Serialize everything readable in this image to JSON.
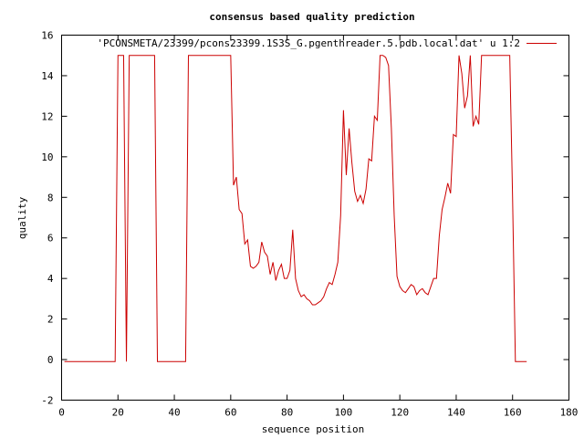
{
  "chart_data": {
    "type": "line",
    "title": "consensus based quality prediction",
    "xlabel": "sequence position",
    "ylabel": "quality",
    "xlim": [
      0,
      180
    ],
    "ylim": [
      -2,
      16
    ],
    "xticks": [
      0,
      20,
      40,
      60,
      80,
      100,
      120,
      140,
      160,
      180
    ],
    "yticks": [
      -2,
      0,
      2,
      4,
      6,
      8,
      10,
      12,
      14,
      16
    ],
    "grid": false,
    "legend_position": "top-right",
    "series": [
      {
        "name": "'PCONSMETA/23399/pcons23399.1S3S_G.pgenthreader.5.pdb.local.dat' u 1:2",
        "color": "#cc0000",
        "points": [
          [
            1,
            -0.1
          ],
          [
            19,
            -0.1
          ],
          [
            20,
            15
          ],
          [
            22,
            15
          ],
          [
            23,
            -0.1
          ],
          [
            24,
            15
          ],
          [
            33,
            15
          ],
          [
            34,
            -0.1
          ],
          [
            44,
            -0.1
          ],
          [
            45,
            15
          ],
          [
            60,
            15
          ],
          [
            61,
            8.6
          ],
          [
            62,
            9.0
          ],
          [
            63,
            7.4
          ],
          [
            64,
            7.2
          ],
          [
            65,
            5.7
          ],
          [
            66,
            5.9
          ],
          [
            67,
            4.6
          ],
          [
            68,
            4.5
          ],
          [
            69,
            4.6
          ],
          [
            70,
            4.8
          ],
          [
            71,
            5.8
          ],
          [
            72,
            5.3
          ],
          [
            73,
            5.1
          ],
          [
            74,
            4.2
          ],
          [
            75,
            4.8
          ],
          [
            76,
            3.9
          ],
          [
            77,
            4.4
          ],
          [
            78,
            4.7
          ],
          [
            79,
            4.0
          ],
          [
            80,
            4.0
          ],
          [
            81,
            4.4
          ],
          [
            82,
            6.4
          ],
          [
            83,
            4.0
          ],
          [
            84,
            3.4
          ],
          [
            85,
            3.1
          ],
          [
            86,
            3.2
          ],
          [
            87,
            3.0
          ],
          [
            88,
            2.9
          ],
          [
            89,
            2.7
          ],
          [
            90,
            2.7
          ],
          [
            91,
            2.8
          ],
          [
            92,
            2.9
          ],
          [
            93,
            3.1
          ],
          [
            94,
            3.5
          ],
          [
            95,
            3.8
          ],
          [
            96,
            3.7
          ],
          [
            97,
            4.2
          ],
          [
            98,
            4.8
          ],
          [
            99,
            7.1
          ],
          [
            100,
            12.3
          ],
          [
            101,
            9.1
          ],
          [
            102,
            11.4
          ],
          [
            103,
            9.7
          ],
          [
            104,
            8.3
          ],
          [
            105,
            7.8
          ],
          [
            106,
            8.1
          ],
          [
            107,
            7.7
          ],
          [
            108,
            8.4
          ],
          [
            109,
            9.9
          ],
          [
            110,
            9.8
          ],
          [
            111,
            12.0
          ],
          [
            112,
            11.8
          ],
          [
            113,
            15.0
          ],
          [
            114,
            15.0
          ],
          [
            115,
            14.9
          ],
          [
            116,
            14.5
          ],
          [
            117,
            11.4
          ],
          [
            118,
            7.1
          ],
          [
            119,
            4.1
          ],
          [
            120,
            3.6
          ],
          [
            121,
            3.4
          ],
          [
            122,
            3.3
          ],
          [
            123,
            3.5
          ],
          [
            124,
            3.7
          ],
          [
            125,
            3.6
          ],
          [
            126,
            3.2
          ],
          [
            127,
            3.4
          ],
          [
            128,
            3.5
          ],
          [
            129,
            3.3
          ],
          [
            130,
            3.2
          ],
          [
            131,
            3.6
          ],
          [
            132,
            4.0
          ],
          [
            133,
            4.0
          ],
          [
            134,
            6.1
          ],
          [
            135,
            7.4
          ],
          [
            136,
            8.0
          ],
          [
            137,
            8.7
          ],
          [
            138,
            8.2
          ],
          [
            139,
            11.1
          ],
          [
            140,
            11.0
          ],
          [
            141,
            15.0
          ],
          [
            142,
            14.1
          ],
          [
            143,
            12.4
          ],
          [
            144,
            13.0
          ],
          [
            145,
            15.0
          ],
          [
            146,
            11.5
          ],
          [
            147,
            12.0
          ],
          [
            148,
            11.6
          ],
          [
            149,
            15.0
          ],
          [
            159,
            15.0
          ],
          [
            160,
            8.0
          ],
          [
            161,
            -0.1
          ],
          [
            165,
            -0.1
          ]
        ]
      }
    ]
  }
}
